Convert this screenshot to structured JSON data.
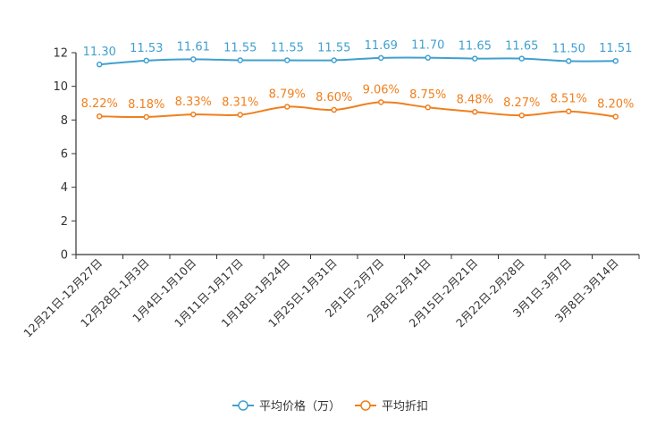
{
  "chart_data": {
    "type": "line",
    "title": "",
    "xlabel": "",
    "ylabel": "",
    "ylim": [
      0,
      12
    ],
    "yticks": [
      0,
      2,
      4,
      6,
      8,
      10,
      12
    ],
    "grid": false,
    "legend_position": "bottom-center",
    "categories": [
      "12月21日-12月27日",
      "12月28日-1月3日",
      "1月4日-1月10日",
      "1月11日-1月17日",
      "1月18日-1月24日",
      "1月25日-1月31日",
      "2月1日-2月7日",
      "2月8日-2月14日",
      "2月15日-2月21日",
      "2月22日-2月28日",
      "3月1日-3月7日",
      "3月8日-3月14日"
    ],
    "series": [
      {
        "name": "平均价格（万）",
        "color": "#3fa0d0",
        "values": [
          11.3,
          11.53,
          11.61,
          11.55,
          11.55,
          11.55,
          11.69,
          11.7,
          11.65,
          11.65,
          11.5,
          11.51
        ],
        "labels": [
          "11.30",
          "11.53",
          "11.61",
          "11.55",
          "11.55",
          "11.55",
          "11.69",
          "11.70",
          "11.65",
          "11.65",
          "11.50",
          "11.51"
        ]
      },
      {
        "name": "平均折扣",
        "color": "#f07f1d",
        "values": [
          8.22,
          8.18,
          8.33,
          8.31,
          8.79,
          8.6,
          9.06,
          8.75,
          8.48,
          8.27,
          8.51,
          8.2
        ],
        "labels": [
          "8.22%",
          "8.18%",
          "8.33%",
          "8.31%",
          "8.79%",
          "8.60%",
          "9.06%",
          "8.75%",
          "8.48%",
          "8.27%",
          "8.51%",
          "8.20%"
        ]
      }
    ]
  }
}
